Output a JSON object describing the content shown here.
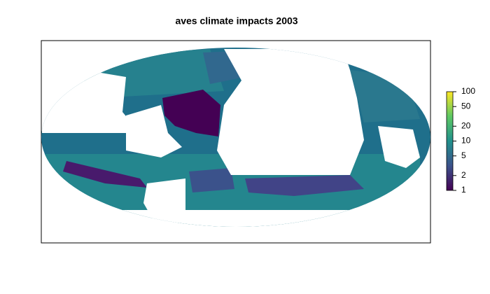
{
  "title": "aves climate impacts 2003",
  "colorbar": {
    "scale": "log",
    "lim": [
      1,
      100
    ],
    "ticks": [
      1,
      2,
      5,
      10,
      20,
      50,
      100
    ],
    "colors": [
      "#440154",
      "#3b528b",
      "#21908c",
      "#5dc863",
      "#fde725"
    ]
  }
}
